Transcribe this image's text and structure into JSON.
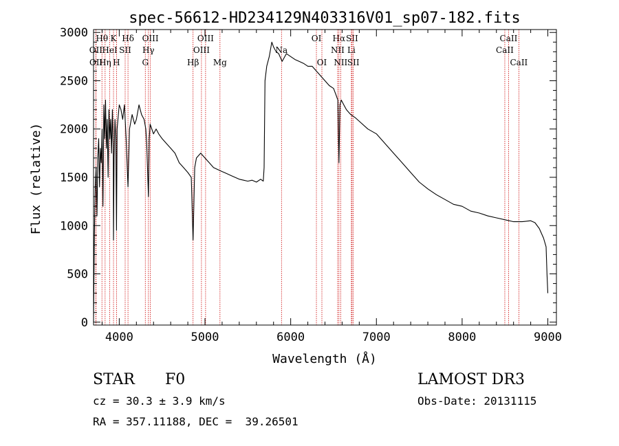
{
  "chart_data": {
    "type": "line",
    "title": "spec-56612-HD234129N403316V01_sp07-182.fits",
    "xlabel": "Wavelength (Å)",
    "ylabel": "Flux (relative)",
    "xlim": [
      3700,
      9100
    ],
    "ylim": [
      -30,
      3030
    ],
    "xticks": [
      4000,
      5000,
      6000,
      7000,
      8000,
      9000
    ],
    "yticks": [
      0,
      500,
      1000,
      1500,
      2000,
      2500,
      3000
    ],
    "grid": false,
    "series": [
      {
        "line_color": "#000000",
        "x": [
          3700,
          3710,
          3720,
          3730,
          3740,
          3750,
          3760,
          3770,
          3780,
          3790,
          3800,
          3810,
          3820,
          3830,
          3840,
          3850,
          3860,
          3870,
          3880,
          3890,
          3900,
          3910,
          3920,
          3930,
          3933,
          3940,
          3950,
          3960,
          3968,
          3975,
          3990,
          4000,
          4020,
          4040,
          4060,
          4080,
          4102,
          4120,
          4150,
          4180,
          4200,
          4230,
          4260,
          4290,
          4310,
          4320,
          4340,
          4350,
          4360,
          4380,
          4400,
          4430,
          4460,
          4500,
          4550,
          4600,
          4650,
          4700,
          4750,
          4800,
          4840,
          4861,
          4880,
          4900,
          4950,
          5000,
          5050,
          5100,
          5150,
          5200,
          5250,
          5300,
          5350,
          5400,
          5450,
          5500,
          5550,
          5600,
          5650,
          5680,
          5690,
          5700,
          5720,
          5750,
          5780,
          5800,
          5830,
          5860,
          5900,
          5950,
          6000,
          6050,
          6100,
          6150,
          6200,
          6250,
          6300,
          6350,
          6400,
          6450,
          6500,
          6530,
          6550,
          6563,
          6575,
          6590,
          6620,
          6650,
          6700,
          6750,
          6800,
          6900,
          7000,
          7100,
          7200,
          7300,
          7400,
          7500,
          7600,
          7700,
          7800,
          7900,
          8000,
          8100,
          8200,
          8300,
          8400,
          8500,
          8600,
          8700,
          8800,
          8850,
          8900,
          8950,
          8980,
          8990,
          9000
        ],
        "y": [
          0,
          900,
          1400,
          1600,
          1100,
          1700,
          1900,
          1400,
          1800,
          1650,
          2000,
          1200,
          2250,
          1900,
          2300,
          1800,
          2100,
          1500,
          2200,
          1900,
          2100,
          1750,
          2200,
          1800,
          850,
          1700,
          2100,
          1900,
          950,
          2000,
          2150,
          2250,
          2200,
          2100,
          2250,
          1900,
          1400,
          2000,
          2150,
          2050,
          2100,
          2250,
          2150,
          2100,
          2000,
          1850,
          1300,
          1900,
          2050,
          2000,
          1950,
          2000,
          1950,
          1900,
          1850,
          1800,
          1750,
          1650,
          1600,
          1550,
          1500,
          850,
          1600,
          1700,
          1750,
          1700,
          1650,
          1600,
          1580,
          1560,
          1540,
          1520,
          1500,
          1480,
          1470,
          1460,
          1470,
          1450,
          1480,
          1460,
          1600,
          2500,
          2650,
          2750,
          2900,
          2850,
          2800,
          2780,
          2700,
          2780,
          2750,
          2720,
          2700,
          2680,
          2650,
          2650,
          2600,
          2550,
          2500,
          2450,
          2420,
          2350,
          2300,
          1650,
          2250,
          2300,
          2250,
          2200,
          2150,
          2120,
          2080,
          2000,
          1950,
          1850,
          1750,
          1650,
          1550,
          1450,
          1380,
          1320,
          1270,
          1220,
          1200,
          1150,
          1130,
          1100,
          1080,
          1060,
          1040,
          1040,
          1050,
          1030,
          970,
          870,
          780,
          500,
          300
        ]
      }
    ],
    "line_markers": [
      {
        "label": "Hθ",
        "x": 3798,
        "row": 1
      },
      {
        "label": "OII",
        "x": 3727,
        "row": 2
      },
      {
        "label": "OII",
        "x": 3729,
        "row": 3
      },
      {
        "label": "K",
        "x": 3933,
        "row": 1
      },
      {
        "label": "HeI",
        "x": 3889,
        "row": 2
      },
      {
        "label": "Hη",
        "x": 3835,
        "row": 3
      },
      {
        "label": "Hδ",
        "x": 4102,
        "row": 1
      },
      {
        "label": "SII",
        "x": 4069,
        "row": 2
      },
      {
        "label": "H",
        "x": 3968,
        "row": 3
      },
      {
        "label": "OIII",
        "x": 4363,
        "row": 1
      },
      {
        "label": "Hγ",
        "x": 4340,
        "row": 2
      },
      {
        "label": "G",
        "x": 4304,
        "row": 3
      },
      {
        "label": "OIII",
        "x": 5007,
        "row": 1
      },
      {
        "label": "OIII",
        "x": 4959,
        "row": 2
      },
      {
        "label": "Hβ",
        "x": 4861,
        "row": 3
      },
      {
        "label": "Mg",
        "x": 5175,
        "row": 3
      },
      {
        "label": "Na",
        "x": 5893,
        "row": 2
      },
      {
        "label": "OI",
        "x": 6300,
        "row": 1
      },
      {
        "label": "OI",
        "x": 6364,
        "row": 3
      },
      {
        "label": "Hα",
        "x": 6563,
        "row": 1
      },
      {
        "label": "SII",
        "x": 6716,
        "row": 1
      },
      {
        "label": "NII",
        "x": 6548,
        "row": 2
      },
      {
        "label": "Li",
        "x": 6708,
        "row": 2
      },
      {
        "label": "NII",
        "x": 6583,
        "row": 3
      },
      {
        "label": "SII",
        "x": 6731,
        "row": 3
      },
      {
        "label": "CaII",
        "x": 8542,
        "row": 1
      },
      {
        "label": "CaII",
        "x": 8498,
        "row": 2
      },
      {
        "label": "CaII",
        "x": 8662,
        "row": 3
      }
    ]
  },
  "info": {
    "object_class": "STAR",
    "subclass": "F0",
    "survey": "LAMOST DR3",
    "cz": "cz = 30.3 ± 3.9 km/s",
    "obs_date": "Obs-Date: 20131115",
    "coords": "RA = 357.11188, DEC =  39.26501"
  }
}
